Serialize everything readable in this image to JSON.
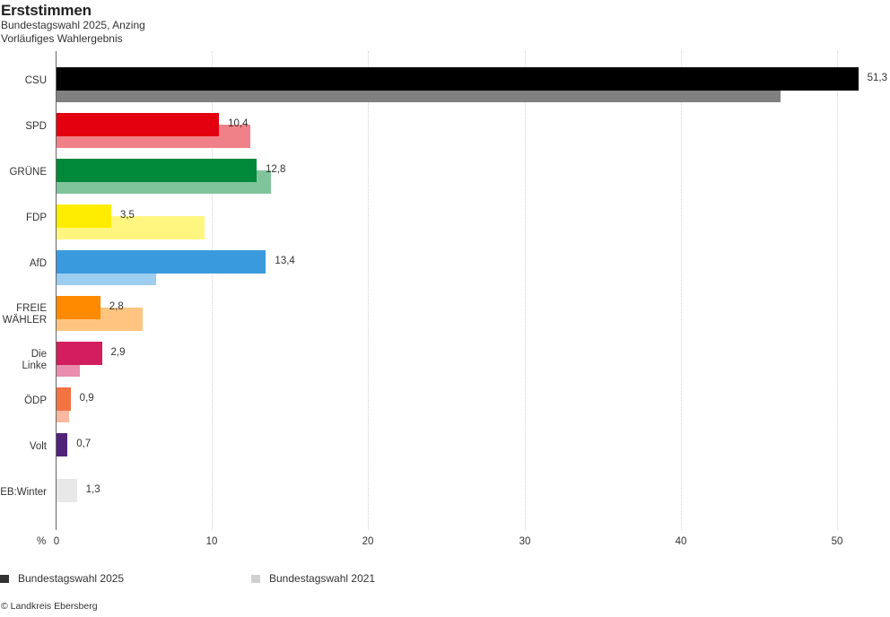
{
  "header": {
    "title": "Erststimmen",
    "subtitle": "Bundestagswahl 2025, Anzing",
    "note": "Vorläufiges Wahlergebnis"
  },
  "axis": {
    "unit": "%",
    "ticks": [
      "0",
      "10",
      "20",
      "30",
      "40",
      "50"
    ]
  },
  "legend": [
    {
      "label": "Bundestagswahl 2025",
      "color": "#333333"
    },
    {
      "label": "Bundestagswahl 2021",
      "color": "#d0d0d0"
    }
  ],
  "source": "© Landkreis Ebersberg",
  "rows": [
    {
      "party": "CSU",
      "v2025": 51.3,
      "v2021": 46.3,
      "label": "51,3",
      "c2025": "#000000",
      "c2021": "#808080"
    },
    {
      "party": "SPD",
      "v2025": 10.4,
      "v2021": 12.4,
      "label": "10,4",
      "c2025": "#e3000f",
      "c2021": "#f18189"
    },
    {
      "party": "GRÜNE",
      "v2025": 12.8,
      "v2021": 13.7,
      "label": "12,8",
      "c2025": "#008939",
      "c2021": "#80c49c"
    },
    {
      "party": "FDP",
      "v2025": 3.5,
      "v2021": 9.5,
      "label": "3,5",
      "c2025": "#ffed00",
      "c2021": "#fff680"
    },
    {
      "party": "AfD",
      "v2025": 13.4,
      "v2021": 6.4,
      "label": "13,4",
      "c2025": "#3a9ade",
      "c2021": "#9dcdf0"
    },
    {
      "party": "FREIE\nWÄHLER",
      "v2025": 2.8,
      "v2021": 5.5,
      "label": "2,8",
      "c2025": "#ff8a00",
      "c2021": "#ffc580"
    },
    {
      "party": "Die\nLinke",
      "v2025": 2.9,
      "v2021": 1.5,
      "label": "2,9",
      "c2025": "#d21d5e",
      "c2021": "#e98eaf"
    },
    {
      "party": "ÖDP",
      "v2025": 0.9,
      "v2021": 0.8,
      "label": "0,9",
      "c2025": "#f37343",
      "c2021": "#f9b9a1"
    },
    {
      "party": "Volt",
      "v2025": 0.7,
      "v2021": null,
      "label": "0,7",
      "c2025": "#502379",
      "c2021": null
    },
    {
      "party": "EB:Winter",
      "v2025": 1.3,
      "v2021": null,
      "label": "1,3",
      "c2025": "#e8e8e8",
      "c2021": null
    }
  ],
  "chart_data": {
    "type": "bar",
    "orientation": "horizontal",
    "title": "Erststimmen",
    "subtitle": "Bundestagswahl 2025, Anzing — Vorläufiges Wahlergebnis",
    "categories": [
      "CSU",
      "SPD",
      "GRÜNE",
      "FDP",
      "AfD",
      "FREIE WÄHLER",
      "Die Linke",
      "ÖDP",
      "Volt",
      "EB:Winter"
    ],
    "series": [
      {
        "name": "Bundestagswahl 2025",
        "values": [
          51.3,
          10.4,
          12.8,
          3.5,
          13.4,
          2.8,
          2.9,
          0.9,
          0.7,
          1.3
        ]
      },
      {
        "name": "Bundestagswahl 2021",
        "values": [
          46.3,
          12.4,
          13.7,
          9.5,
          6.4,
          5.5,
          1.5,
          0.8,
          null,
          null
        ]
      }
    ],
    "xlabel": "%",
    "ylabel": "",
    "xlim": [
      0,
      52
    ],
    "xticks": [
      0,
      10,
      20,
      30,
      40,
      50
    ],
    "grid": "vertical dotted",
    "legend_position": "bottom",
    "source": "© Landkreis Ebersberg"
  }
}
